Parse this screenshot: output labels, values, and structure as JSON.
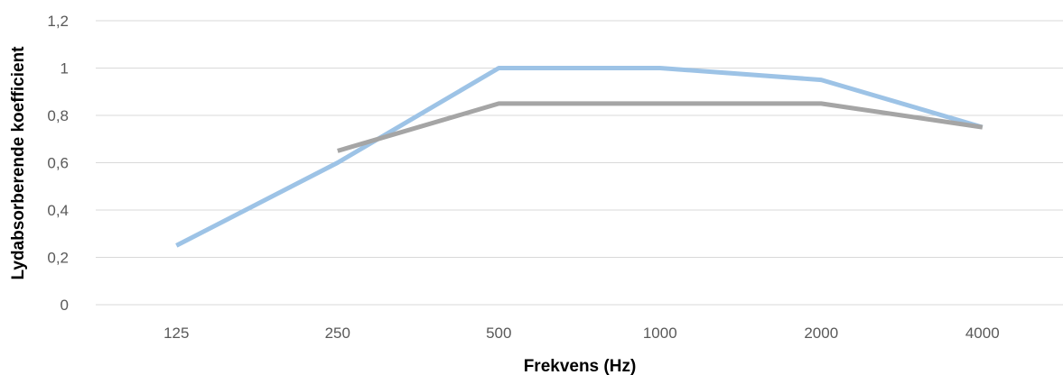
{
  "chart_data": {
    "type": "line",
    "title": "",
    "xlabel": "Frekvens (Hz)",
    "ylabel": "Lydabsorberende koefficient",
    "categories": [
      "125",
      "250",
      "500",
      "1000",
      "2000",
      "4000"
    ],
    "ylim": [
      0,
      1.2
    ],
    "yticks": [
      "0",
      "0,2",
      "0,4",
      "0,6",
      "0,8",
      "1",
      "1,2"
    ],
    "ytick_values": [
      0,
      0.2,
      0.4,
      0.6,
      0.8,
      1.0,
      1.2
    ],
    "grid": true,
    "legend": "none",
    "series": [
      {
        "color": "#9dc3e6",
        "values": [
          0.25,
          0.6,
          1.0,
          1.0,
          0.95,
          0.75
        ]
      },
      {
        "color": "#a5a5a5",
        "values": [
          null,
          0.65,
          0.85,
          0.85,
          0.85,
          0.75
        ]
      }
    ]
  }
}
